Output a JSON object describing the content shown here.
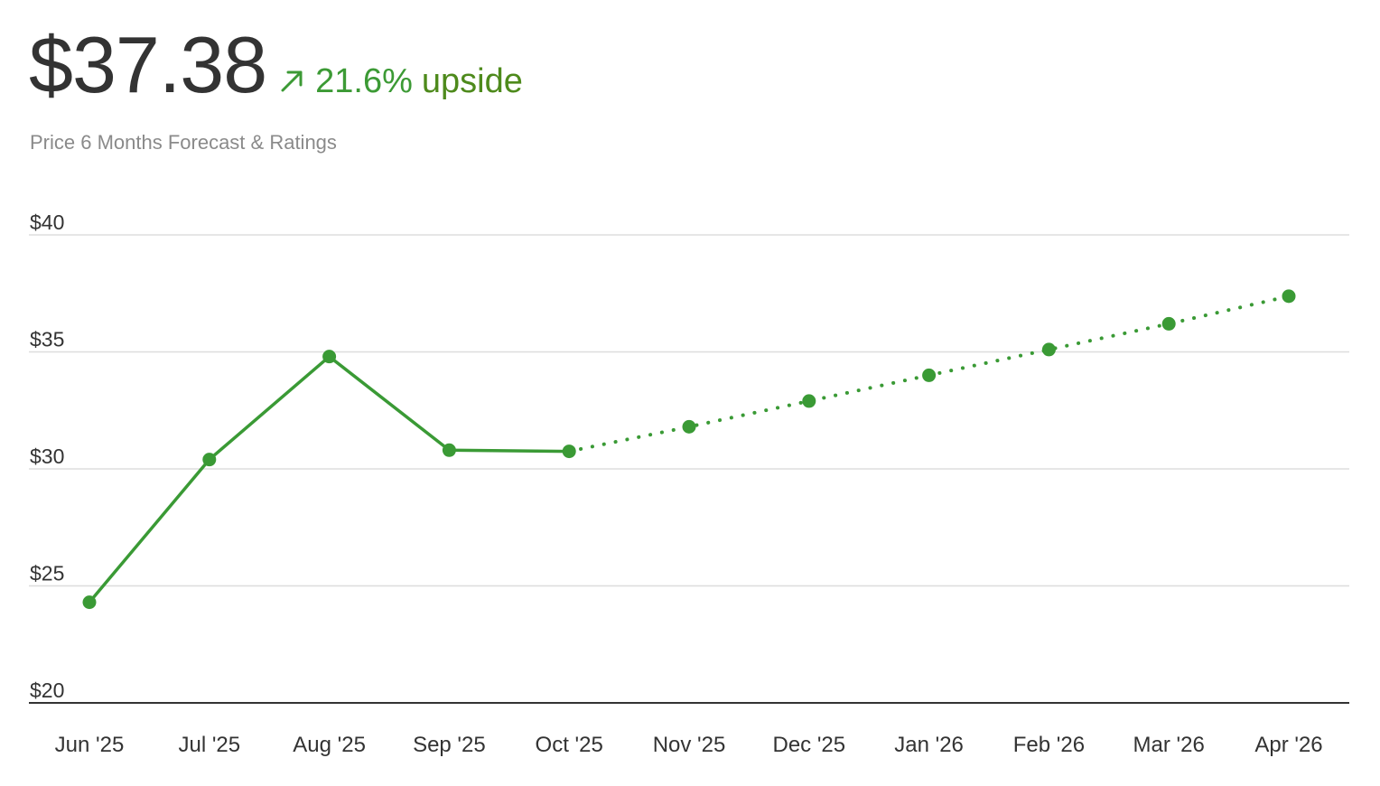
{
  "header": {
    "price": "$37.38",
    "upside_pct": "21.6%",
    "upside_word": "upside",
    "subtitle": "Price 6 Months Forecast & Ratings"
  },
  "colors": {
    "series": "#3a9a35",
    "upside_pct": "#3c9a35",
    "upside_word": "#4e8a1c",
    "grid": "#dddddd",
    "axis": "#333333",
    "subtitle": "#8a8a8a"
  },
  "icons": {
    "upside": "arrow-up-right-icon"
  },
  "chart_data": {
    "type": "line",
    "categories": [
      "Jun '25",
      "Jul '25",
      "Aug '25",
      "Sep '25",
      "Oct '25",
      "Nov '25",
      "Dec '25",
      "Jan '26",
      "Feb '26",
      "Mar '26",
      "Apr '26"
    ],
    "series": [
      {
        "style": "solid",
        "x": [
          "Jun '25",
          "Jul '25",
          "Aug '25",
          "Sep '25",
          "Oct '25"
        ],
        "values": [
          24.3,
          30.4,
          34.8,
          30.8,
          30.75
        ]
      },
      {
        "style": "dotted",
        "x": [
          "Oct '25",
          "Nov '25",
          "Dec '25",
          "Jan '26",
          "Feb '26",
          "Mar '26",
          "Apr '26"
        ],
        "values": [
          30.75,
          31.8,
          32.9,
          34.0,
          35.1,
          36.2,
          37.38
        ]
      }
    ],
    "y_ticks": [
      "$20",
      "$25",
      "$30",
      "$35",
      "$40"
    ],
    "y_tick_values": [
      20,
      25,
      30,
      35,
      40
    ],
    "ylim": [
      20,
      40
    ],
    "grid": true,
    "legend": "none"
  }
}
